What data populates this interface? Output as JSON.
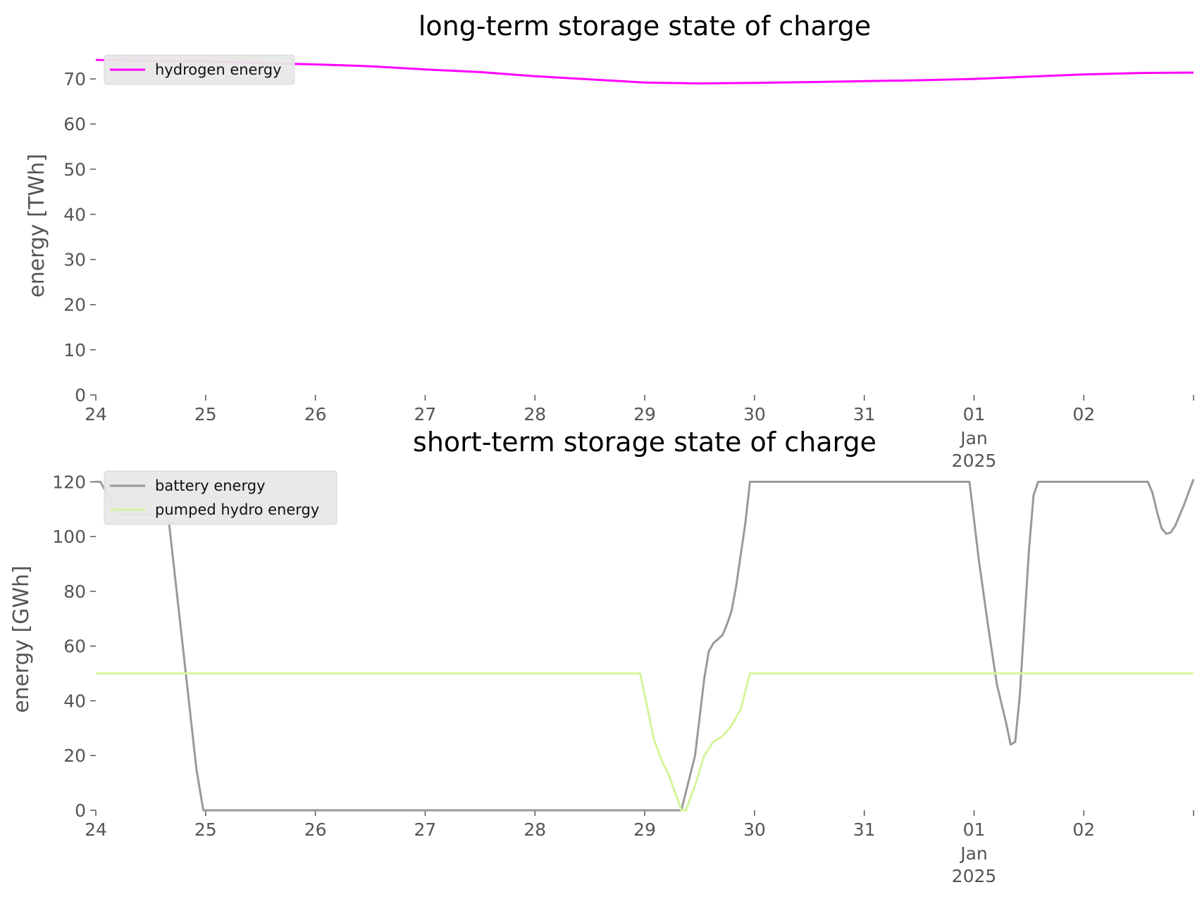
{
  "chart_data": [
    {
      "type": "line",
      "title": "long-term storage state of charge",
      "ylabel": "energy [TWh]",
      "xlabel": "",
      "ylim": [
        0,
        75
      ],
      "xlim": [
        "2024-12-24T00:00",
        "2025-01-02T23:59"
      ],
      "yticks": [
        0,
        10,
        20,
        30,
        40,
        50,
        60,
        70
      ],
      "xticks": [
        {
          "date": "2024-12-24T00:00",
          "label": "24"
        },
        {
          "date": "2024-12-25T00:00",
          "label": "25"
        },
        {
          "date": "2024-12-26T00:00",
          "label": "26"
        },
        {
          "date": "2024-12-27T00:00",
          "label": "27"
        },
        {
          "date": "2024-12-28T00:00",
          "label": "28"
        },
        {
          "date": "2024-12-29T00:00",
          "label": "29"
        },
        {
          "date": "2024-12-30T00:00",
          "label": "30"
        },
        {
          "date": "2024-12-31T00:00",
          "label": "31"
        },
        {
          "date": "2025-01-01T00:00",
          "label": "01",
          "sublabels": [
            "Jan",
            "2025"
          ]
        },
        {
          "date": "2025-01-02T00:00",
          "label": "02"
        }
      ],
      "grid": false,
      "legend_position": "top-left",
      "series": [
        {
          "name": "hydrogen energy",
          "color": "#ff00ff",
          "points": [
            [
              "2024-12-24T00:00",
              74.2
            ],
            [
              "2024-12-24T12:00",
              74.0
            ],
            [
              "2024-12-25T00:00",
              73.9
            ],
            [
              "2024-12-25T12:00",
              73.5
            ],
            [
              "2024-12-26T00:00",
              73.2
            ],
            [
              "2024-12-26T12:00",
              72.8
            ],
            [
              "2024-12-27T00:00",
              72.1
            ],
            [
              "2024-12-27T12:00",
              71.5
            ],
            [
              "2024-12-28T00:00",
              70.6
            ],
            [
              "2024-12-28T12:00",
              69.9
            ],
            [
              "2024-12-29T00:00",
              69.2
            ],
            [
              "2024-12-29T12:00",
              69.0
            ],
            [
              "2024-12-30T00:00",
              69.1
            ],
            [
              "2024-12-30T12:00",
              69.3
            ],
            [
              "2024-12-31T00:00",
              69.5
            ],
            [
              "2024-12-31T12:00",
              69.7
            ],
            [
              "2025-01-01T00:00",
              70.0
            ],
            [
              "2025-01-01T12:00",
              70.5
            ],
            [
              "2025-01-02T00:00",
              71.0
            ],
            [
              "2025-01-02T12:00",
              71.3
            ],
            [
              "2025-01-02T23:59",
              71.4
            ]
          ]
        }
      ]
    },
    {
      "type": "line",
      "title": "short-term storage state of charge",
      "ylabel": "energy [GWh]",
      "xlabel": "",
      "ylim": [
        0,
        125
      ],
      "xlim": [
        "2024-12-24T00:00",
        "2025-01-02T23:59"
      ],
      "yticks": [
        0,
        20,
        40,
        60,
        80,
        100,
        120
      ],
      "xticks": [
        {
          "date": "2024-12-24T00:00",
          "label": "24"
        },
        {
          "date": "2024-12-25T00:00",
          "label": "25"
        },
        {
          "date": "2024-12-26T00:00",
          "label": "26"
        },
        {
          "date": "2024-12-27T00:00",
          "label": "27"
        },
        {
          "date": "2024-12-28T00:00",
          "label": "28"
        },
        {
          "date": "2024-12-29T00:00",
          "label": "29"
        },
        {
          "date": "2024-12-30T00:00",
          "label": "30"
        },
        {
          "date": "2024-12-31T00:00",
          "label": "31"
        },
        {
          "date": "2025-01-01T00:00",
          "label": "01",
          "sublabels": [
            "Jan",
            "2025"
          ]
        },
        {
          "date": "2025-01-02T00:00",
          "label": "02"
        }
      ],
      "grid": false,
      "legend_position": "top-left",
      "series": [
        {
          "name": "battery energy",
          "color": "#999999",
          "points": [
            [
              "2024-12-24T00:00",
              120
            ],
            [
              "2024-12-24T01:00",
              120
            ],
            [
              "2024-12-24T05:00",
              108
            ],
            [
              "2024-12-24T15:00",
              108
            ],
            [
              "2024-12-24T16:00",
              105
            ],
            [
              "2024-12-24T19:00",
              60
            ],
            [
              "2024-12-24T22:00",
              15
            ],
            [
              "2024-12-24T23:30",
              0
            ],
            [
              "2024-12-29T04:00",
              0
            ],
            [
              "2024-12-29T08:00",
              0
            ],
            [
              "2024-12-29T11:00",
              20
            ],
            [
              "2024-12-29T13:00",
              48
            ],
            [
              "2024-12-29T14:00",
              58
            ],
            [
              "2024-12-29T15:00",
              61
            ],
            [
              "2024-12-29T17:00",
              64
            ],
            [
              "2024-12-29T18:00",
              68
            ],
            [
              "2024-12-29T19:00",
              73
            ],
            [
              "2024-12-29T20:00",
              82
            ],
            [
              "2024-12-29T22:00",
              105
            ],
            [
              "2024-12-29T23:00",
              120
            ],
            [
              "2024-12-31T23:00",
              120
            ],
            [
              "2025-01-01T01:00",
              92
            ],
            [
              "2025-01-01T03:00",
              68
            ],
            [
              "2025-01-01T05:00",
              46
            ],
            [
              "2025-01-01T07:00",
              32
            ],
            [
              "2025-01-01T08:00",
              24
            ],
            [
              "2025-01-01T09:00",
              25
            ],
            [
              "2025-01-01T10:00",
              42
            ],
            [
              "2025-01-01T12:00",
              95
            ],
            [
              "2025-01-01T13:00",
              115
            ],
            [
              "2025-01-01T14:00",
              120
            ],
            [
              "2025-01-02T14:00",
              120
            ],
            [
              "2025-01-02T15:00",
              116
            ],
            [
              "2025-01-02T16:00",
              109
            ],
            [
              "2025-01-02T17:00",
              103
            ],
            [
              "2025-01-02T18:00",
              101
            ],
            [
              "2025-01-02T19:00",
              101.5
            ],
            [
              "2025-01-02T20:00",
              104
            ],
            [
              "2025-01-02T22:00",
              112
            ],
            [
              "2025-01-02T23:59",
              121
            ]
          ]
        },
        {
          "name": "pumped hydro energy",
          "color": "#d4f59a",
          "points": [
            [
              "2024-12-24T00:00",
              50
            ],
            [
              "2024-12-28T23:00",
              50
            ],
            [
              "2024-12-29T00:00",
              42
            ],
            [
              "2024-12-29T02:00",
              26
            ],
            [
              "2024-12-29T04:00",
              17
            ],
            [
              "2024-12-29T05:00",
              14
            ],
            [
              "2024-12-29T07:00",
              5
            ],
            [
              "2024-12-29T08:00",
              0
            ],
            [
              "2024-12-29T09:00",
              0
            ],
            [
              "2024-12-29T11:00",
              9
            ],
            [
              "2024-12-29T13:00",
              20
            ],
            [
              "2024-12-29T15:00",
              25
            ],
            [
              "2024-12-29T17:00",
              27
            ],
            [
              "2024-12-29T19:00",
              31
            ],
            [
              "2024-12-29T21:00",
              37
            ],
            [
              "2024-12-29T23:00",
              50
            ],
            [
              "2025-01-02T23:59",
              50
            ]
          ]
        }
      ]
    }
  ]
}
